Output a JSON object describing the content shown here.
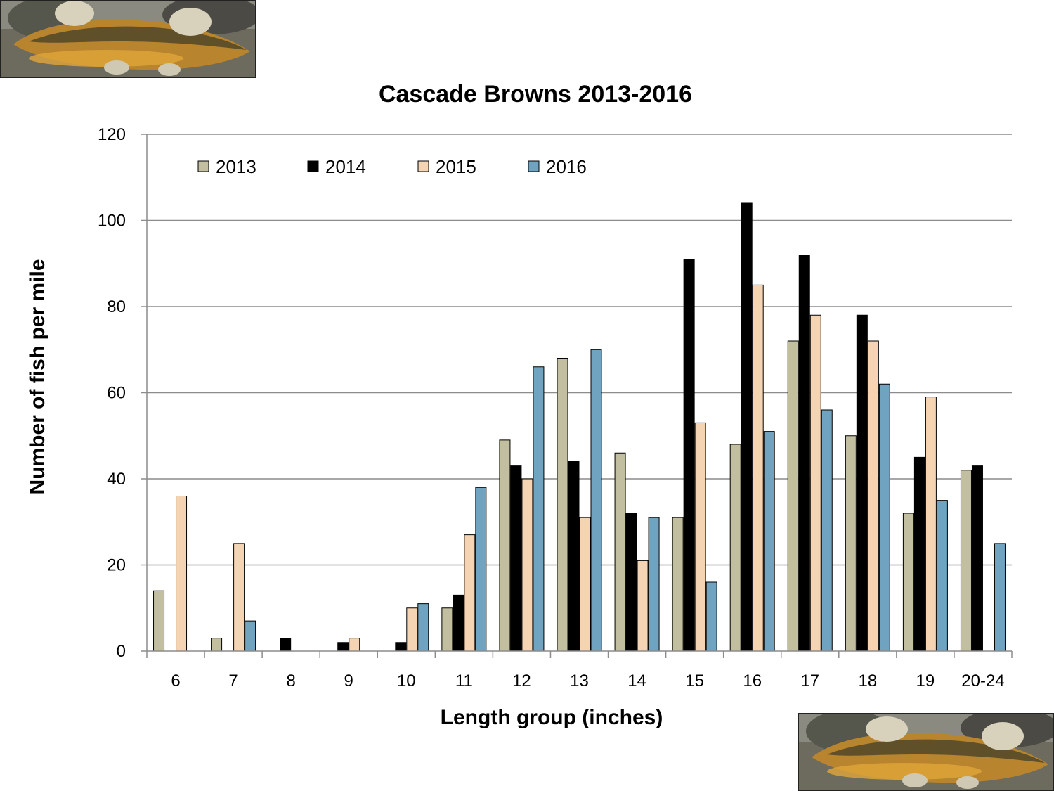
{
  "chart_data": {
    "type": "bar",
    "title": "Cascade Browns 2013-2016",
    "xlabel": "Length group (inches)",
    "ylabel": "Number of fish per mile",
    "ylim": [
      0,
      120
    ],
    "yticks": [
      0,
      20,
      40,
      60,
      80,
      100,
      120
    ],
    "grid": true,
    "legend_position": "top-left",
    "categories": [
      "6",
      "7",
      "8",
      "9",
      "10",
      "11",
      "12",
      "13",
      "14",
      "15",
      "16",
      "17",
      "18",
      "19",
      "20-24"
    ],
    "series": [
      {
        "name": "2013",
        "color": "#c2bfa0",
        "values": [
          14,
          3,
          0,
          0,
          0,
          10,
          49,
          68,
          46,
          31,
          48,
          72,
          50,
          32,
          42
        ]
      },
      {
        "name": "2014",
        "color": "#000000",
        "values": [
          0,
          0,
          3,
          2,
          2,
          13,
          43,
          44,
          32,
          91,
          104,
          92,
          78,
          45,
          43
        ]
      },
      {
        "name": "2015",
        "color": "#f5d4b3",
        "values": [
          36,
          25,
          0,
          3,
          10,
          27,
          40,
          31,
          21,
          53,
          85,
          78,
          72,
          59,
          0
        ]
      },
      {
        "name": "2016",
        "color": "#6fa3bf",
        "values": [
          0,
          7,
          0,
          0,
          11,
          38,
          66,
          70,
          31,
          16,
          51,
          56,
          62,
          35,
          25
        ]
      }
    ]
  },
  "photos": {
    "top_left": "brown-trout-photo",
    "bottom_right": "brown-trout-photo"
  }
}
